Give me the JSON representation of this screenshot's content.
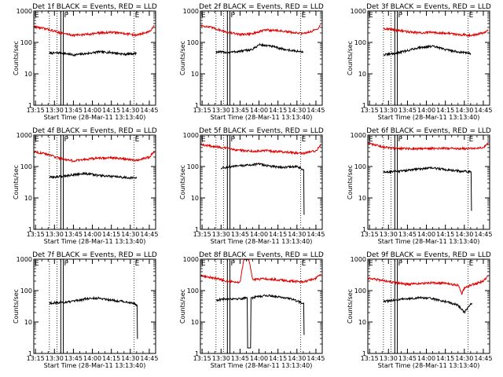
{
  "figure": {
    "xlabel": "Start Time (28-Mar-11 13:13:40)",
    "ylabel": "Counts/sec",
    "x_ticks": [
      "13:15",
      "13:30",
      "13:45",
      "14:00",
      "14:15",
      "14:30",
      "14:45"
    ],
    "y_ticks": [
      "1",
      "10",
      "100",
      "1000"
    ],
    "marker_labels": [
      "E",
      "P",
      "E"
    ],
    "colors": {
      "events": "#000000",
      "lld": "#e00000",
      "frame": "#000000"
    }
  },
  "chart_data": [
    {
      "type": "line",
      "title": "Det 1f BLACK = Events, RED = LLD",
      "xlim": [
        "13:13:40",
        "14:50:00"
      ],
      "ylim": [
        1,
        1000
      ],
      "yscale": "log",
      "markers": {
        "E_start": "13:13:40",
        "dotted": [
          "13:26:00",
          "13:32:00",
          "14:33:00"
        ],
        "P": [
          "13:35:00",
          "13:37:00"
        ],
        "E_end": "14:33:00"
      },
      "series": [
        {
          "name": "Events",
          "color": "#000000",
          "x": [
            "13:26:00",
            "13:35:00",
            "13:45:00",
            "13:55:00",
            "14:05:00",
            "14:15:00",
            "14:25:00",
            "14:35:00"
          ],
          "values": [
            45,
            47,
            40,
            44,
            50,
            48,
            42,
            45
          ]
        },
        {
          "name": "LLD",
          "color": "#e00000",
          "x": [
            "13:14:00",
            "13:25:00",
            "13:35:00",
            "13:45:00",
            "13:55:00",
            "14:05:00",
            "14:15:00",
            "14:25:00",
            "14:35:00",
            "14:45:00",
            "14:49:00"
          ],
          "values": [
            320,
            260,
            200,
            170,
            180,
            200,
            210,
            195,
            170,
            220,
            330
          ]
        }
      ]
    },
    {
      "type": "line",
      "title": "Det 2f BLACK = Events, RED = LLD",
      "xlim": [
        "13:13:40",
        "14:50:00"
      ],
      "ylim": [
        1,
        1000
      ],
      "yscale": "log",
      "markers": {
        "E_start": "13:13:40",
        "dotted": [
          "13:26:00",
          "13:32:00",
          "14:33:00"
        ],
        "P": [
          "13:35:00",
          "13:37:00"
        ],
        "E_end": "14:33:00"
      },
      "series": [
        {
          "name": "Events",
          "color": "#000000",
          "x": [
            "13:26:00",
            "13:35:00",
            "13:45:00",
            "13:55:00",
            "14:00:00",
            "14:10:00",
            "14:20:00",
            "14:30:00",
            "14:35:00"
          ],
          "values": [
            50,
            48,
            52,
            60,
            85,
            75,
            60,
            52,
            50
          ]
        },
        {
          "name": "LLD",
          "color": "#e00000",
          "x": [
            "13:14:00",
            "13:25:00",
            "13:35:00",
            "13:45:00",
            "13:55:00",
            "14:05:00",
            "14:15:00",
            "14:25:00",
            "14:35:00",
            "14:45:00",
            "14:49:00"
          ],
          "values": [
            350,
            280,
            210,
            180,
            190,
            250,
            240,
            210,
            190,
            250,
            360
          ]
        }
      ]
    },
    {
      "type": "line",
      "title": "Det 3f BLACK = Events, RED = LLD",
      "xlim": [
        "13:13:40",
        "14:50:00"
      ],
      "ylim": [
        1,
        1000
      ],
      "yscale": "log",
      "markers": {
        "E_start": "13:13:40",
        "dotted": [
          "13:26:00",
          "13:32:00",
          "14:33:00"
        ],
        "P": [
          "13:35:00",
          "13:37:00"
        ],
        "E_end": "14:33:00"
      },
      "series": [
        {
          "name": "Events",
          "color": "#000000",
          "x": [
            "13:26:00",
            "13:35:00",
            "13:45:00",
            "13:55:00",
            "14:05:00",
            "14:15:00",
            "14:25:00",
            "14:35:00"
          ],
          "values": [
            40,
            45,
            55,
            70,
            75,
            60,
            50,
            45
          ]
        },
        {
          "name": "LLD",
          "color": "#e00000",
          "x": [
            "13:26:00",
            "13:35:00",
            "13:45:00",
            "13:55:00",
            "14:05:00",
            "14:15:00",
            "14:25:00",
            "14:35:00",
            "14:45:00",
            "14:49:00"
          ],
          "values": [
            280,
            250,
            220,
            200,
            210,
            200,
            180,
            170,
            200,
            240
          ]
        }
      ]
    },
    {
      "type": "line",
      "title": "Det 4f BLACK = Events, RED = LLD",
      "xlim": [
        "13:13:40",
        "14:50:00"
      ],
      "ylim": [
        1,
        1000
      ],
      "yscale": "log",
      "markers": {
        "E_start": "13:13:40",
        "dotted": [
          "13:26:00",
          "13:32:00",
          "14:33:00"
        ],
        "P": [
          "13:35:00",
          "13:37:00"
        ],
        "E_end": "14:33:00"
      },
      "series": [
        {
          "name": "Events",
          "color": "#000000",
          "x": [
            "13:26:00",
            "13:35:00",
            "13:45:00",
            "13:55:00",
            "14:05:00",
            "14:15:00",
            "14:25:00",
            "14:35:00"
          ],
          "values": [
            45,
            48,
            55,
            60,
            52,
            48,
            45,
            43
          ]
        },
        {
          "name": "LLD",
          "color": "#e00000",
          "x": [
            "13:14:00",
            "13:25:00",
            "13:35:00",
            "13:45:00",
            "13:55:00",
            "14:05:00",
            "14:15:00",
            "14:25:00",
            "14:35:00",
            "14:45:00",
            "14:49:00"
          ],
          "values": [
            300,
            240,
            180,
            150,
            170,
            185,
            190,
            175,
            160,
            200,
            300
          ]
        }
      ]
    },
    {
      "type": "line",
      "title": "Det 5f BLACK = Events, RED = LLD",
      "xlim": [
        "13:13:40",
        "14:50:00"
      ],
      "ylim": [
        1,
        1000
      ],
      "yscale": "log",
      "markers": {
        "E_start": "13:13:40",
        "dotted": [
          "13:26:00",
          "13:32:00",
          "14:33:00"
        ],
        "P": [
          "13:35:00",
          "13:37:00"
        ],
        "E_end": "14:33:00"
      },
      "series": [
        {
          "name": "Events",
          "color": "#000000",
          "x": [
            "13:30:00",
            "13:40:00",
            "13:50:00",
            "14:00:00",
            "14:10:00",
            "14:20:00",
            "14:30:00",
            "14:35:00",
            "14:36:00"
          ],
          "values": [
            90,
            100,
            110,
            120,
            100,
            95,
            100,
            80,
            3
          ]
        },
        {
          "name": "LLD",
          "color": "#e00000",
          "x": [
            "13:14:00",
            "13:25:00",
            "13:35:00",
            "13:45:00",
            "13:55:00",
            "14:05:00",
            "14:15:00",
            "14:25:00",
            "14:35:00",
            "14:45:00",
            "14:49:00"
          ],
          "values": [
            500,
            430,
            380,
            330,
            310,
            320,
            300,
            280,
            260,
            320,
            480
          ]
        }
      ]
    },
    {
      "type": "line",
      "title": "Det 6f BLACK = Events, RED = LLD",
      "xlim": [
        "13:13:40",
        "14:50:00"
      ],
      "ylim": [
        1,
        1000
      ],
      "yscale": "log",
      "markers": {
        "E_start": "13:13:40",
        "dotted": [
          "13:26:00",
          "13:32:00",
          "14:33:00"
        ],
        "P": [
          "13:35:00",
          "13:37:00"
        ],
        "E_end": "14:33:00"
      },
      "series": [
        {
          "name": "Events",
          "color": "#000000",
          "x": [
            "13:26:00",
            "13:35:00",
            "13:45:00",
            "13:55:00",
            "14:05:00",
            "14:15:00",
            "14:25:00",
            "14:35:00",
            "14:36:00"
          ],
          "values": [
            65,
            70,
            75,
            85,
            90,
            80,
            72,
            68,
            4
          ]
        },
        {
          "name": "LLD",
          "color": "#e00000",
          "x": [
            "13:14:00",
            "13:25:00",
            "13:35:00",
            "13:45:00",
            "13:55:00",
            "14:05:00",
            "14:15:00",
            "14:25:00",
            "14:35:00",
            "14:45:00",
            "14:49:00"
          ],
          "values": [
            550,
            420,
            380,
            370,
            370,
            380,
            380,
            375,
            370,
            400,
            560
          ]
        }
      ]
    },
    {
      "type": "line",
      "title": "Det 7f BLACK = Events, RED = LLD",
      "xlim": [
        "13:13:40",
        "14:50:00"
      ],
      "ylim": [
        1,
        1000
      ],
      "yscale": "log",
      "markers": {
        "E_start": "13:13:40",
        "dotted": [
          "13:26:00",
          "13:32:00",
          "14:33:00"
        ],
        "P": [
          "13:35:00",
          "13:37:00"
        ],
        "E_end": "14:33:00"
      },
      "series": [
        {
          "name": "Events",
          "color": "#000000",
          "x": [
            "13:26:00",
            "13:35:00",
            "13:45:00",
            "13:55:00",
            "14:05:00",
            "14:15:00",
            "14:25:00",
            "14:32:00",
            "14:35:00",
            "14:36:00"
          ],
          "values": [
            40,
            42,
            45,
            55,
            58,
            50,
            45,
            40,
            35,
            3
          ]
        }
      ]
    },
    {
      "type": "line",
      "title": "Det 8f BLACK = Events, RED = LLD",
      "xlim": [
        "13:13:40",
        "14:50:00"
      ],
      "ylim": [
        1,
        1000
      ],
      "yscale": "log",
      "markers": {
        "E_start": "13:13:40",
        "dotted": [
          "13:26:00",
          "13:32:00",
          "14:33:00"
        ],
        "P": [
          "13:35:00",
          "13:37:00"
        ],
        "E_end": "14:33:00"
      },
      "series": [
        {
          "name": "Events",
          "color": "#000000",
          "x": [
            "13:26:00",
            "13:35:00",
            "13:45:00",
            "13:50:00",
            "13:52:00",
            "13:55:00",
            "14:05:00",
            "14:15:00",
            "14:25:00",
            "14:35:00",
            "14:36:00"
          ],
          "values": [
            50,
            55,
            55,
            60,
            1.5,
            60,
            70,
            65,
            55,
            40,
            4
          ]
        },
        {
          "name": "LLD",
          "color": "#e00000",
          "x": [
            "13:14:00",
            "13:25:00",
            "13:35:00",
            "13:45:00",
            "13:48:00",
            "13:50:00",
            "13:52:00",
            "13:55:00",
            "14:05:00",
            "14:15:00",
            "14:25:00",
            "14:35:00",
            "14:45:00",
            "14:49:00"
          ],
          "values": [
            300,
            250,
            200,
            180,
            1000,
            1000,
            1000,
            220,
            240,
            220,
            200,
            190,
            250,
            320
          ]
        }
      ]
    },
    {
      "type": "line",
      "title": "Det 9f BLACK = Events, RED = LLD",
      "xlim": [
        "13:13:40",
        "14:50:00"
      ],
      "ylim": [
        1,
        1000
      ],
      "yscale": "log",
      "markers": {
        "E_start": "13:13:40",
        "dotted": [
          "13:26:00",
          "13:32:00",
          "14:33:00"
        ],
        "P": [
          "13:35:00",
          "13:37:00"
        ],
        "E_end": "14:33:00"
      },
      "series": [
        {
          "name": "Events",
          "color": "#000000",
          "x": [
            "13:26:00",
            "13:35:00",
            "13:45:00",
            "13:55:00",
            "14:05:00",
            "14:15:00",
            "14:25:00",
            "14:30:00",
            "14:33:00",
            "14:36:00"
          ],
          "values": [
            45,
            50,
            55,
            60,
            55,
            45,
            35,
            20,
            30,
            40
          ]
        },
        {
          "name": "LLD",
          "color": "#e00000",
          "x": [
            "13:14:00",
            "13:25:00",
            "13:35:00",
            "13:45:00",
            "13:55:00",
            "14:05:00",
            "14:15:00",
            "14:25:00",
            "14:28:00",
            "14:30:00",
            "14:35:00",
            "14:45:00",
            "14:49:00"
          ],
          "values": [
            250,
            210,
            180,
            160,
            170,
            180,
            170,
            150,
            80,
            120,
            150,
            200,
            300
          ]
        }
      ]
    }
  ]
}
